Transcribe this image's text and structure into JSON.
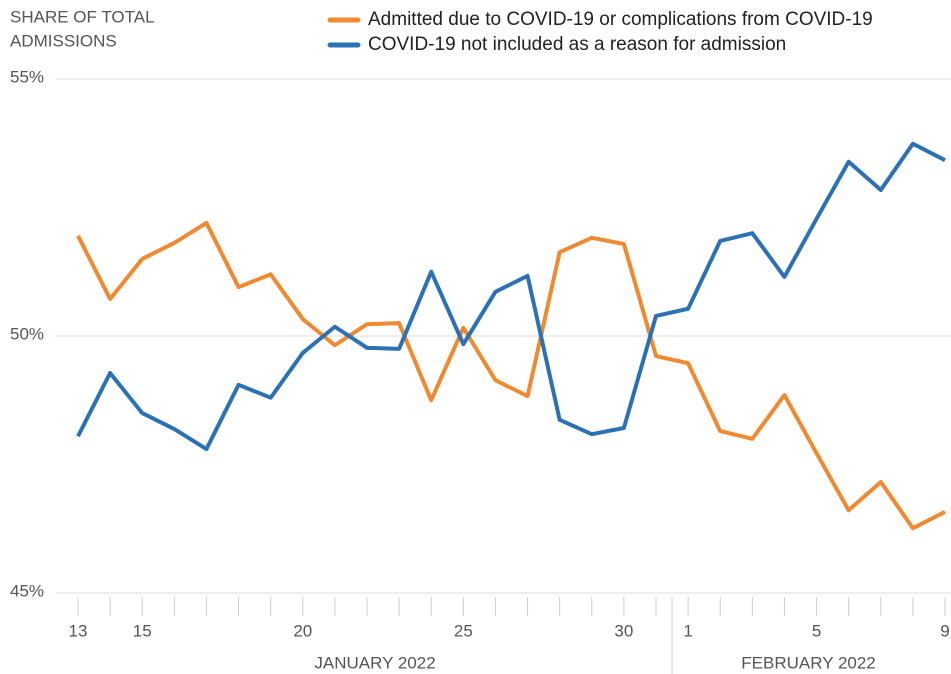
{
  "chart_data": {
    "type": "line",
    "ylabel": [
      "SHARE OF TOTAL",
      "ADMISSIONS"
    ],
    "categories": [
      "13",
      null,
      "15",
      null,
      null,
      null,
      null,
      "20",
      null,
      null,
      null,
      null,
      "25",
      null,
      null,
      null,
      null,
      "30",
      null,
      "1",
      null,
      null,
      null,
      "5",
      null,
      null,
      null,
      "9"
    ],
    "months": [
      "JANUARY 2022",
      "FEBRUARY 2022"
    ],
    "series": [
      {
        "name": "Admitted due to COVID-19 or complications from COVID-19",
        "color": "#f0892f",
        "values": [
          51.95,
          50.72,
          51.5,
          51.81,
          52.2,
          50.95,
          51.2,
          50.33,
          49.82,
          50.23,
          50.25,
          48.75,
          50.16,
          49.14,
          48.83,
          51.63,
          51.91,
          51.79,
          49.61,
          49.47,
          48.15,
          48.0,
          48.85,
          47.72,
          46.61,
          47.16,
          46.26,
          46.58
        ]
      },
      {
        "name": "COVID-19 not included as a reason for admission",
        "color": "#2a72b5",
        "values": [
          48.05,
          49.28,
          48.5,
          48.19,
          47.8,
          49.05,
          48.8,
          49.67,
          50.18,
          49.77,
          49.75,
          51.25,
          49.84,
          50.86,
          51.17,
          48.37,
          48.09,
          48.21,
          50.39,
          50.53,
          51.85,
          52.0,
          51.15,
          52.28,
          53.39,
          52.84,
          53.74,
          53.42
        ]
      }
    ],
    "ylim": [
      45,
      55
    ],
    "yticks": [
      {
        "value": 45,
        "label": "45%"
      },
      {
        "value": 50,
        "label": "50%"
      },
      {
        "value": 55,
        "label": "55%"
      }
    ],
    "grid": true
  }
}
